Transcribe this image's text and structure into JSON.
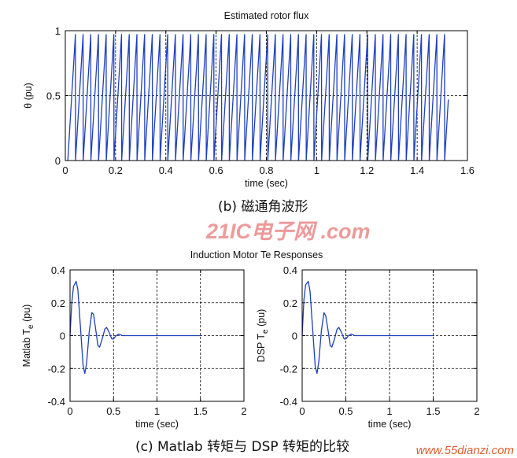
{
  "figure": {
    "caption_b": "(b)  磁通角波形",
    "caption_c": "(c)   Matlab 转矩与 DSP 转矩的比较",
    "group_title_c": "Induction Motor Te Responses",
    "watermark_logo": "21IC电子网 .com",
    "watermark_url": "www.55dianzi.com"
  },
  "chart_data": [
    {
      "id": "flux",
      "type": "line",
      "title": "Estimated rotor flux",
      "xlabel": "time (sec)",
      "ylabel": "θ (pu)",
      "xlim": [
        0,
        1.6
      ],
      "ylim": [
        0,
        1
      ],
      "xticks": [
        "0",
        "0.2",
        "0.4",
        "0.6",
        "0.8",
        "1",
        "1.2",
        "1.4",
        "1.6"
      ],
      "yticks": [
        "0",
        "0.5",
        "1"
      ],
      "grid": true,
      "series": [
        {
          "color": "#1f3fbf",
          "signal": "sawtooth",
          "t_start": 0.01,
          "t_end": 1.51,
          "period": 0.0306,
          "min": 0,
          "max": 0.97,
          "end_value": 0.47
        }
      ]
    },
    {
      "id": "te_matlab",
      "type": "line",
      "title": "",
      "xlabel": "time (sec)",
      "ylabel": "Matlab T",
      "ylabel_sub": "e",
      "ylabel_unit": " (pu)",
      "xlim": [
        0,
        2
      ],
      "ylim": [
        -0.4,
        0.4
      ],
      "xticks": [
        "0",
        "0.5",
        "1",
        "1.5",
        "2"
      ],
      "yticks": [
        "-0.4",
        "-0.2",
        "0",
        "0.2",
        "0.4"
      ],
      "grid": true,
      "series": [
        {
          "color": "#1f3fbf",
          "points": [
            [
              0,
              0
            ],
            [
              0.02,
              0.2
            ],
            [
              0.04,
              0.3
            ],
            [
              0.07,
              0.33
            ],
            [
              0.09,
              0.28
            ],
            [
              0.12,
              0.05
            ],
            [
              0.15,
              -0.18
            ],
            [
              0.17,
              -0.23
            ],
            [
              0.19,
              -0.17
            ],
            [
              0.22,
              0.02
            ],
            [
              0.25,
              0.14
            ],
            [
              0.27,
              0.13
            ],
            [
              0.3,
              0.02
            ],
            [
              0.32,
              -0.06
            ],
            [
              0.34,
              -0.07
            ],
            [
              0.37,
              -0.02
            ],
            [
              0.4,
              0.04
            ],
            [
              0.42,
              0.05
            ],
            [
              0.45,
              0.02
            ],
            [
              0.48,
              -0.02
            ],
            [
              0.5,
              -0.02
            ],
            [
              0.53,
              0
            ],
            [
              0.56,
              0.01
            ],
            [
              0.6,
              0
            ],
            [
              0.65,
              0
            ],
            [
              1.5,
              0
            ]
          ]
        }
      ]
    },
    {
      "id": "te_dsp",
      "type": "line",
      "title": "",
      "xlabel": "time (sec)",
      "ylabel": "DSP T",
      "ylabel_sub": "e",
      "ylabel_unit": " (pu)",
      "xlim": [
        0,
        2
      ],
      "ylim": [
        -0.4,
        0.4
      ],
      "xticks": [
        "0",
        "0.5",
        "1",
        "1.5",
        "2"
      ],
      "yticks": [
        "-0.4",
        "-0.2",
        "0",
        "0.2",
        "0.4"
      ],
      "grid": true,
      "series": [
        {
          "color": "#1f3fbf",
          "points": [
            [
              0,
              0
            ],
            [
              0.02,
              0.22
            ],
            [
              0.04,
              0.31
            ],
            [
              0.07,
              0.33
            ],
            [
              0.09,
              0.27
            ],
            [
              0.12,
              0.04
            ],
            [
              0.15,
              -0.19
            ],
            [
              0.17,
              -0.23
            ],
            [
              0.19,
              -0.16
            ],
            [
              0.22,
              0.03
            ],
            [
              0.25,
              0.14
            ],
            [
              0.27,
              0.12
            ],
            [
              0.3,
              0.02
            ],
            [
              0.32,
              -0.06
            ],
            [
              0.34,
              -0.07
            ],
            [
              0.37,
              -0.02
            ],
            [
              0.4,
              0.04
            ],
            [
              0.42,
              0.05
            ],
            [
              0.45,
              0.02
            ],
            [
              0.48,
              -0.02
            ],
            [
              0.5,
              -0.02
            ],
            [
              0.53,
              0
            ],
            [
              0.56,
              0.01
            ],
            [
              0.6,
              0
            ],
            [
              0.65,
              0
            ],
            [
              1.5,
              0
            ]
          ]
        }
      ]
    }
  ]
}
